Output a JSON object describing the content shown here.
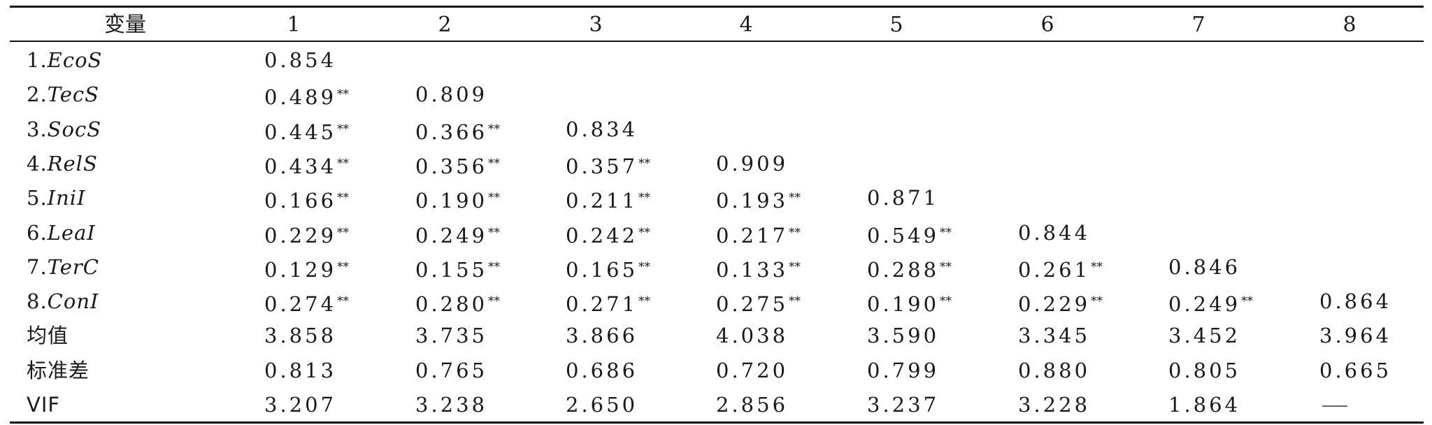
{
  "table": {
    "header": [
      "变量",
      "1",
      "2",
      "3",
      "4",
      "5",
      "6",
      "7",
      "8"
    ],
    "rows": [
      {
        "num": "1.",
        "name": "EcoS",
        "cells": [
          {
            "v": "0.854",
            "s": ""
          }
        ]
      },
      {
        "num": "2.",
        "name": "TecS",
        "cells": [
          {
            "v": "0.489",
            "s": "**"
          },
          {
            "v": "0.809",
            "s": ""
          }
        ]
      },
      {
        "num": "3.",
        "name": "SocS",
        "cells": [
          {
            "v": "0.445",
            "s": "**"
          },
          {
            "v": "0.366",
            "s": "**"
          },
          {
            "v": "0.834",
            "s": ""
          }
        ]
      },
      {
        "num": "4.",
        "name": "RelS",
        "cells": [
          {
            "v": "0.434",
            "s": "**"
          },
          {
            "v": "0.356",
            "s": "**"
          },
          {
            "v": "0.357",
            "s": "**"
          },
          {
            "v": "0.909",
            "s": ""
          }
        ]
      },
      {
        "num": "5.",
        "name": "IniI",
        "cells": [
          {
            "v": "0.166",
            "s": "**"
          },
          {
            "v": "0.190",
            "s": "**"
          },
          {
            "v": "0.211",
            "s": "**"
          },
          {
            "v": "0.193",
            "s": "**"
          },
          {
            "v": "0.871",
            "s": ""
          }
        ]
      },
      {
        "num": "6.",
        "name": "LeaI",
        "cells": [
          {
            "v": "0.229",
            "s": "**"
          },
          {
            "v": "0.249",
            "s": "**"
          },
          {
            "v": "0.242",
            "s": "**"
          },
          {
            "v": "0.217",
            "s": "**"
          },
          {
            "v": "0.549",
            "s": "**"
          },
          {
            "v": "0.844",
            "s": ""
          }
        ]
      },
      {
        "num": "7.",
        "name": "TerC",
        "cells": [
          {
            "v": "0.129",
            "s": "**"
          },
          {
            "v": "0.155",
            "s": "**"
          },
          {
            "v": "0.165",
            "s": "**"
          },
          {
            "v": "0.133",
            "s": "**"
          },
          {
            "v": "0.288",
            "s": "**"
          },
          {
            "v": "0.261",
            "s": "**"
          },
          {
            "v": "0.846",
            "s": ""
          }
        ]
      },
      {
        "num": "8.",
        "name": "ConI",
        "cells": [
          {
            "v": "0.274",
            "s": "**"
          },
          {
            "v": "0.280",
            "s": "**"
          },
          {
            "v": "0.271",
            "s": "**"
          },
          {
            "v": "0.275",
            "s": "**"
          },
          {
            "v": "0.190",
            "s": "**"
          },
          {
            "v": "0.229",
            "s": "**"
          },
          {
            "v": "0.249",
            "s": "**"
          },
          {
            "v": "0.864",
            "s": ""
          }
        ]
      },
      {
        "num": "",
        "name": "均值",
        "plain": true,
        "cells": [
          {
            "v": "3.858",
            "s": ""
          },
          {
            "v": "3.735",
            "s": ""
          },
          {
            "v": "3.866",
            "s": ""
          },
          {
            "v": "4.038",
            "s": ""
          },
          {
            "v": "3.590",
            "s": ""
          },
          {
            "v": "3.345",
            "s": ""
          },
          {
            "v": "3.452",
            "s": ""
          },
          {
            "v": "3.964",
            "s": ""
          }
        ]
      },
      {
        "num": "",
        "name": "标准差",
        "plain": true,
        "cells": [
          {
            "v": "0.813",
            "s": ""
          },
          {
            "v": "0.765",
            "s": ""
          },
          {
            "v": "0.686",
            "s": ""
          },
          {
            "v": "0.720",
            "s": ""
          },
          {
            "v": "0.799",
            "s": ""
          },
          {
            "v": "0.880",
            "s": ""
          },
          {
            "v": "0.805",
            "s": ""
          },
          {
            "v": "0.665",
            "s": ""
          }
        ]
      },
      {
        "num": "",
        "name": "VIF",
        "plain": true,
        "cells": [
          {
            "v": "3.207",
            "s": ""
          },
          {
            "v": "3.238",
            "s": ""
          },
          {
            "v": "2.650",
            "s": ""
          },
          {
            "v": "2.856",
            "s": ""
          },
          {
            "v": "3.237",
            "s": ""
          },
          {
            "v": "3.228",
            "s": ""
          },
          {
            "v": "1.864",
            "s": ""
          },
          {
            "v": "—",
            "s": "",
            "dash": true
          }
        ]
      }
    ]
  }
}
